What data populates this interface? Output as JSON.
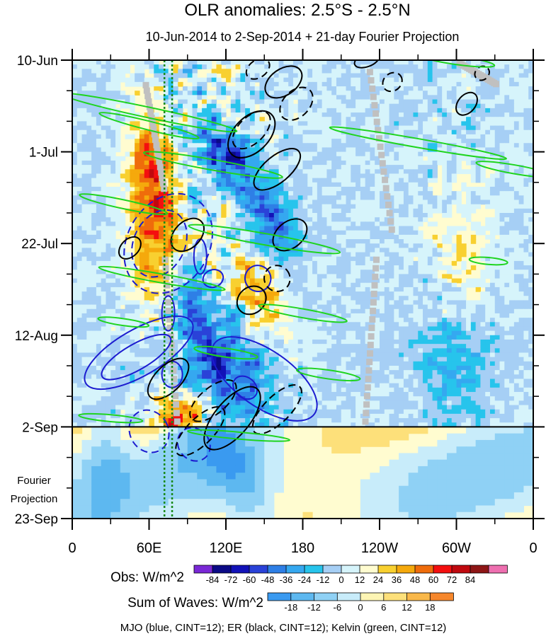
{
  "chart_data": {
    "type": "heatmap",
    "title": "OLR anomalies: 2.5°S - 2.5°N",
    "subtitle": "10-Jun-2014 to 2-Sep-2014 + 21-day Fourier Projection",
    "x_ticks": [
      {
        "lon": 0,
        "label": "0"
      },
      {
        "lon": 60,
        "label": "60E"
      },
      {
        "lon": 120,
        "label": "120E"
      },
      {
        "lon": 180,
        "label": "180"
      },
      {
        "lon": 240,
        "label": "120W"
      },
      {
        "lon": 300,
        "label": "60W"
      },
      {
        "lon": 360,
        "label": "0"
      }
    ],
    "y_ticks": [
      {
        "day": 0,
        "label": "10-Jun"
      },
      {
        "day": 21,
        "label": "1-Jul"
      },
      {
        "day": 42,
        "label": "22-Jul"
      },
      {
        "day": 63,
        "label": "12-Aug"
      },
      {
        "day": 84,
        "label": "2-Sep"
      },
      {
        "day": 105,
        "label": "23-Sep"
      }
    ],
    "xlim": [
      0,
      360
    ],
    "ylim": [
      0,
      105
    ],
    "y_minor_step_days": 7,
    "x_minor_step_deg": 30,
    "projection_start_day": 84,
    "projection_label": [
      "Fourier",
      "Projection"
    ],
    "reference_lons": [
      72,
      78
    ],
    "obs_colorbar": {
      "title": "Obs: W/m^2",
      "labels": [
        "-84",
        "-72",
        "-60",
        "-48",
        "-36",
        "-24",
        "-12",
        "0",
        "12",
        "24",
        "36",
        "48",
        "60",
        "72",
        "84"
      ],
      "colors": [
        "#7a28d6",
        "#0b0a86",
        "#1212b8",
        "#2a42d8",
        "#2e7fe6",
        "#35a8f0",
        "#27c4ec",
        "#a6cff5",
        "#d6f4fb",
        "#fffcd0",
        "#f8d030",
        "#f5a90c",
        "#ef6c0b",
        "#f40f0f",
        "#c0090f",
        "#8e1616",
        "#ee6fb0"
      ]
    },
    "waves_colorbar": {
      "title": "Sum of Waves: W/m^2",
      "labels": [
        "-18",
        "-12",
        "-6",
        "0",
        "6",
        "12",
        "18"
      ],
      "colors": [
        "#3a9af0",
        "#5db8f0",
        "#8fd1f5",
        "#c8ecfa",
        "#fdf5b4",
        "#fde07a",
        "#f9b84a",
        "#f6872c"
      ]
    },
    "wave_series": [
      {
        "name": "MJO",
        "color": "#1c1cd0",
        "cint": 12
      },
      {
        "name": "ER",
        "color": "#000000",
        "cint": 12
      },
      {
        "name": "Kelvin",
        "color": "#1fd41f",
        "cint": 12
      }
    ],
    "footer": "MJO (blue, CINT=12); ER (black, CINT=12); Kelvin (green, CINT=12)"
  }
}
